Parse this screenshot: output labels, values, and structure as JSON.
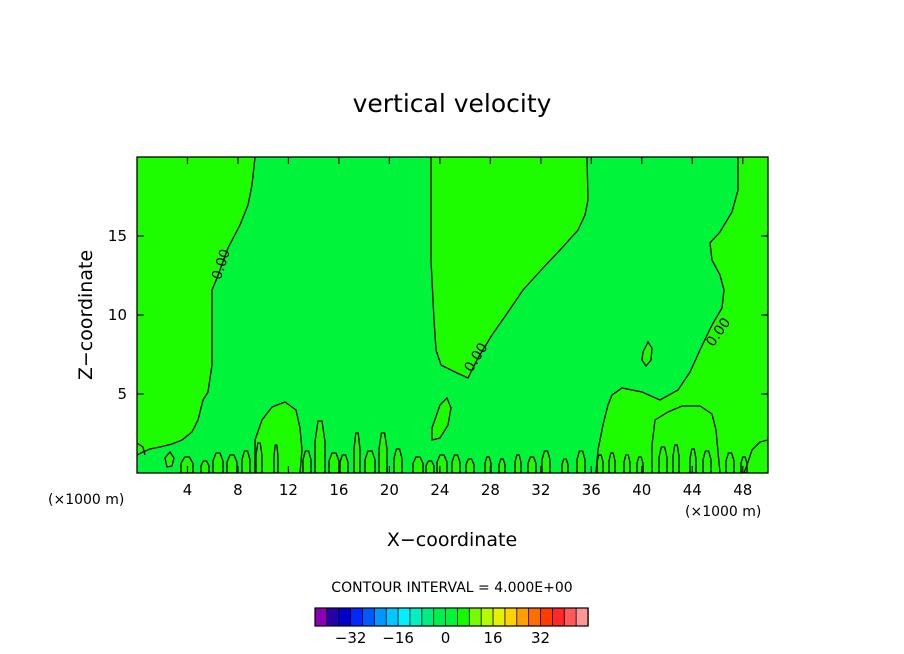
{
  "chart_data": {
    "type": "heatmap",
    "title": "vertical velocity",
    "xlabel": "X−coordinate",
    "ylabel": "Z−coordinate",
    "x_unit": "(×1000 m)",
    "y_unit": "(×1000 m)",
    "xlim": [
      0,
      50
    ],
    "ylim": [
      0,
      20
    ],
    "x_ticks": [
      4,
      8,
      12,
      16,
      20,
      24,
      28,
      32,
      36,
      40,
      44,
      48
    ],
    "y_ticks": [
      5,
      10,
      15
    ],
    "contour_interval_text": "CONTOUR INTERVAL = 4.000E+00",
    "contour_labels": [
      {
        "text": "0.00",
        "x": 6.7,
        "y": 13.2
      },
      {
        "text": "0.00",
        "x": 26.9,
        "y": 7.3
      },
      {
        "text": "0.00",
        "x": 46.1,
        "y": 8.9
      }
    ],
    "positive_region_color": "#1efc00",
    "near_zero_color": "#00f53a",
    "contour_line_color": "#000000",
    "colorbar": {
      "colors": [
        "#8c00b4",
        "#2600a8",
        "#0000cc",
        "#0028ff",
        "#005aff",
        "#0098ff",
        "#00c8ff",
        "#00f0ff",
        "#00f0c0",
        "#00ee80",
        "#00f04a",
        "#00f53a",
        "#14fa00",
        "#78fa00",
        "#b4fa00",
        "#e6f000",
        "#ffd200",
        "#ffa000",
        "#ff6e00",
        "#ff3c00",
        "#ff2828",
        "#ff5a5a",
        "#ff9696"
      ],
      "tick_values": [
        -32,
        -16,
        0,
        16,
        32
      ],
      "tick_labels": [
        "−32",
        "−16",
        "0",
        "16",
        "32"
      ],
      "range": [
        -44,
        48
      ]
    }
  }
}
